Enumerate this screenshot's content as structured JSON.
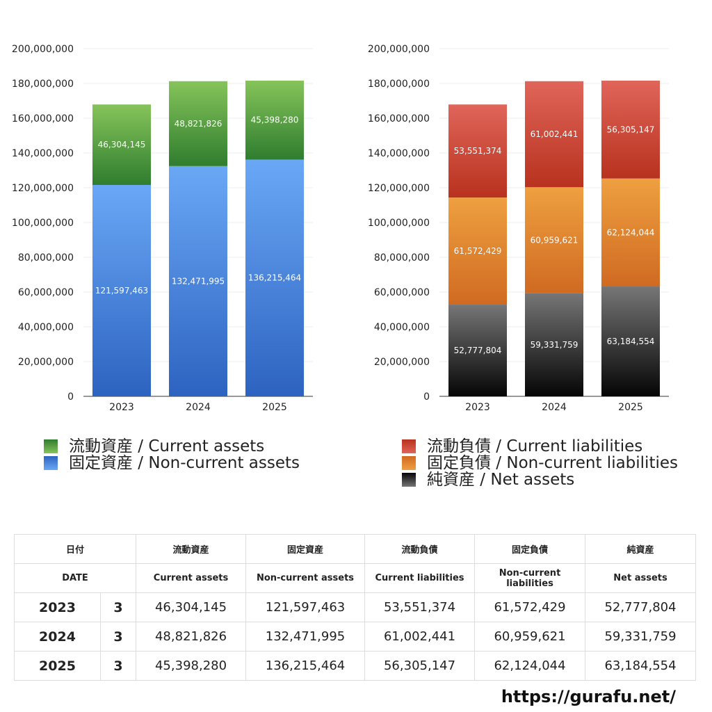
{
  "chart_data": [
    {
      "type": "bar",
      "stacked": true,
      "categories": [
        "2023",
        "2024",
        "2025"
      ],
      "ylim": [
        0,
        200000000
      ],
      "yticks": [
        "0",
        "20,000,000",
        "40,000,000",
        "60,000,000",
        "80,000,000",
        "100,000,000",
        "120,000,000",
        "140,000,000",
        "160,000,000",
        "180,000,000",
        "200,000,000"
      ],
      "grid": true,
      "series": [
        {
          "name": "固定資産 / Non-current assets",
          "values": [
            121597463,
            132471995,
            136215464
          ],
          "labels": [
            "121,597,463",
            "132,471,995",
            "136,215,464"
          ],
          "colors": [
            "#2d63c0",
            "#6aa8f6"
          ]
        },
        {
          "name": "流動資産 / Current assets",
          "values": [
            46304145,
            48821826,
            45398280
          ],
          "labels": [
            "46,304,145",
            "48,821,826",
            "45,398,280"
          ],
          "colors": [
            "#2f7d2f",
            "#86c45a"
          ]
        }
      ]
    },
    {
      "type": "bar",
      "stacked": true,
      "categories": [
        "2023",
        "2024",
        "2025"
      ],
      "ylim": [
        0,
        200000000
      ],
      "yticks": [
        "0",
        "20,000,000",
        "40,000,000",
        "60,000,000",
        "80,000,000",
        "100,000,000",
        "120,000,000",
        "140,000,000",
        "160,000,000",
        "180,000,000",
        "200,000,000"
      ],
      "grid": true,
      "series": [
        {
          "name": "純資産 / Net assets",
          "values": [
            52777804,
            59331759,
            63184554
          ],
          "labels": [
            "52,777,804",
            "59,331,759",
            "63,184,554"
          ],
          "colors": [
            "#050505",
            "#767676"
          ]
        },
        {
          "name": "固定負債 / Non-current liabilities",
          "values": [
            61572429,
            60959621,
            62124044
          ],
          "labels": [
            "61,572,429",
            "60,959,621",
            "62,124,044"
          ],
          "colors": [
            "#d06a22",
            "#eea040"
          ]
        },
        {
          "name": "流動負債 / Current liabilities",
          "values": [
            53551374,
            61002441,
            56305147
          ],
          "labels": [
            "53,551,374",
            "61,002,441",
            "56,305,147"
          ],
          "colors": [
            "#b8321e",
            "#e0655a"
          ]
        }
      ]
    }
  ],
  "legend_left": [
    {
      "label": "流動資産 / Current assets",
      "color": "#4aa33e"
    },
    {
      "label": "固定資産 / Non-current assets",
      "color": "#3b7de0"
    }
  ],
  "legend_right": [
    {
      "label": "流動負債 / Current liabilities",
      "color": "#d8453a"
    },
    {
      "label": "固定負債 / Non-current liabilities",
      "color": "#e3882f"
    },
    {
      "label": "純資産 / Net assets",
      "color": "#2a2a2a"
    }
  ],
  "table": {
    "header_jp": [
      "日付",
      "流動資産",
      "固定資産",
      "流動負債",
      "固定負債",
      "純資産"
    ],
    "header_en": [
      "DATE",
      "Current assets",
      "Non-current assets",
      "Current liabilities",
      "Non-current liabilities",
      "Net assets"
    ],
    "rows": [
      {
        "year": "2023",
        "month": "3",
        "values": [
          "46,304,145",
          "121,597,463",
          "53,551,374",
          "61,572,429",
          "52,777,804"
        ]
      },
      {
        "year": "2024",
        "month": "3",
        "values": [
          "48,821,826",
          "132,471,995",
          "61,002,441",
          "60,959,621",
          "59,331,759"
        ]
      },
      {
        "year": "2025",
        "month": "3",
        "values": [
          "45,398,280",
          "136,215,464",
          "56,305,147",
          "62,124,044",
          "63,184,554"
        ]
      }
    ]
  },
  "footer": {
    "url": "https://gurafu.net/"
  }
}
